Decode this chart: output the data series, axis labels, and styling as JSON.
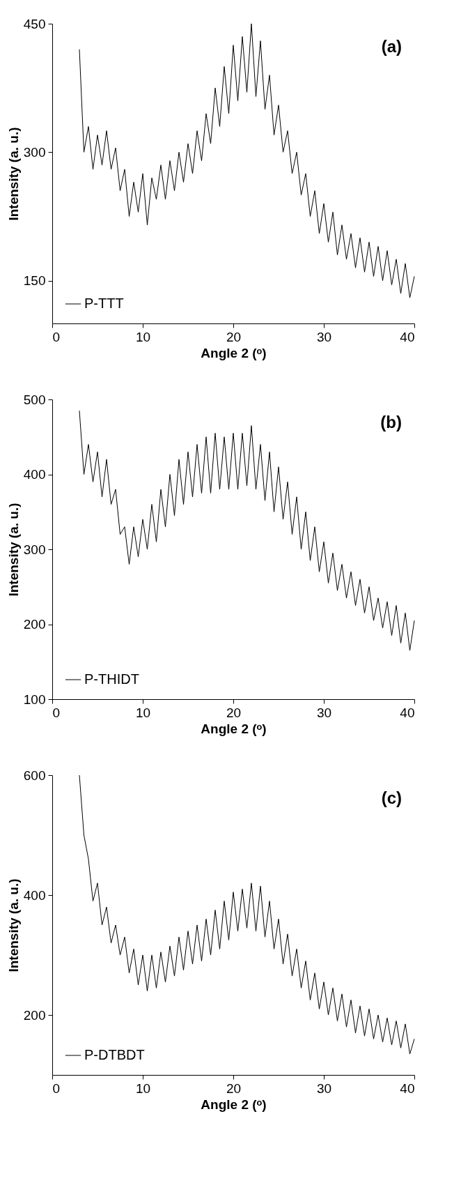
{
  "chart_data": [
    {
      "type": "line",
      "xlabel": "Angle 2 (ᵒ)",
      "ylabel": "Intensity (a. u.)",
      "annotations": [
        "(a)"
      ],
      "xlim": [
        0,
        40
      ],
      "xticks": [
        0,
        10,
        20,
        30,
        40
      ],
      "ylim": [
        100,
        450
      ],
      "yticks": [
        150,
        300,
        450
      ],
      "grid": false,
      "legend": "bottom left",
      "marker": "none",
      "line_style": "solid",
      "x": [
        3,
        3.5,
        4,
        4.5,
        5,
        5.5,
        6,
        6.5,
        7,
        7.5,
        8,
        8.5,
        9,
        9.5,
        10,
        10.5,
        11,
        11.5,
        12,
        12.5,
        13,
        13.5,
        14,
        14.5,
        15,
        15.5,
        16,
        16.5,
        17,
        17.5,
        18,
        18.5,
        19,
        19.5,
        20,
        20.5,
        21,
        21.5,
        22,
        22.5,
        23,
        23.5,
        24,
        24.5,
        25,
        25.5,
        26,
        26.5,
        27,
        27.5,
        28,
        28.5,
        29,
        29.5,
        30,
        30.5,
        31,
        31.5,
        32,
        32.5,
        33,
        33.5,
        34,
        34.5,
        35,
        35.5,
        36,
        36.5,
        37,
        37.5,
        38,
        38.5,
        39,
        39.5,
        40
      ],
      "series": [
        {
          "name": "P-TTT",
          "color": "#000000",
          "values": [
            420,
            300,
            330,
            280,
            320,
            285,
            325,
            280,
            305,
            255,
            280,
            225,
            265,
            230,
            275,
            215,
            270,
            245,
            285,
            245,
            290,
            255,
            300,
            265,
            310,
            275,
            325,
            290,
            345,
            310,
            375,
            330,
            400,
            345,
            425,
            360,
            435,
            370,
            450,
            365,
            430,
            350,
            390,
            320,
            355,
            300,
            325,
            275,
            300,
            250,
            275,
            225,
            255,
            205,
            240,
            195,
            230,
            180,
            215,
            175,
            205,
            165,
            200,
            160,
            195,
            155,
            190,
            150,
            185,
            145,
            175,
            135,
            170,
            130,
            155
          ]
        }
      ]
    },
    {
      "type": "line",
      "xlabel": "Angle 2 (ᵒ)",
      "ylabel": "Intensity (a. u.)",
      "annotations": [
        "(b)"
      ],
      "xlim": [
        0,
        40
      ],
      "xticks": [
        0,
        10,
        20,
        30,
        40
      ],
      "ylim": [
        100,
        500
      ],
      "yticks": [
        100,
        200,
        300,
        400,
        500
      ],
      "grid": false,
      "legend": "bottom left",
      "marker": "none",
      "line_style": "solid",
      "x": [
        3,
        3.5,
        4,
        4.5,
        5,
        5.5,
        6,
        6.5,
        7,
        7.5,
        8,
        8.5,
        9,
        9.5,
        10,
        10.5,
        11,
        11.5,
        12,
        12.5,
        13,
        13.5,
        14,
        14.5,
        15,
        15.5,
        16,
        16.5,
        17,
        17.5,
        18,
        18.5,
        19,
        19.5,
        20,
        20.5,
        21,
        21.5,
        22,
        22.5,
        23,
        23.5,
        24,
        24.5,
        25,
        25.5,
        26,
        26.5,
        27,
        27.5,
        28,
        28.5,
        29,
        29.5,
        30,
        30.5,
        31,
        31.5,
        32,
        32.5,
        33,
        33.5,
        34,
        34.5,
        35,
        35.5,
        36,
        36.5,
        37,
        37.5,
        38,
        38.5,
        39,
        39.5,
        40
      ],
      "series": [
        {
          "name": "P-THIDT",
          "color": "#000000",
          "values": [
            485,
            400,
            440,
            390,
            430,
            370,
            420,
            360,
            380,
            320,
            330,
            280,
            330,
            290,
            340,
            300,
            360,
            310,
            380,
            330,
            400,
            345,
            420,
            360,
            430,
            370,
            440,
            375,
            450,
            375,
            455,
            380,
            450,
            380,
            455,
            380,
            455,
            385,
            465,
            380,
            440,
            365,
            430,
            350,
            410,
            340,
            390,
            320,
            370,
            300,
            350,
            285,
            330,
            270,
            310,
            255,
            295,
            245,
            280,
            235,
            270,
            225,
            260,
            215,
            250,
            205,
            235,
            195,
            230,
            185,
            225,
            175,
            215,
            165,
            205
          ]
        }
      ]
    },
    {
      "type": "line",
      "xlabel": "Angle 2 (ᵒ)",
      "ylabel": "Intensity (a. u.)",
      "annotations": [
        "(c)"
      ],
      "xlim": [
        0,
        40
      ],
      "xticks": [
        0,
        10,
        20,
        30,
        40
      ],
      "ylim": [
        100,
        600
      ],
      "yticks": [
        200,
        400,
        600
      ],
      "grid": false,
      "legend": "bottom left",
      "marker": "none",
      "line_style": "solid",
      "x": [
        3,
        3.5,
        4,
        4.5,
        5,
        5.5,
        6,
        6.5,
        7,
        7.5,
        8,
        8.5,
        9,
        9.5,
        10,
        10.5,
        11,
        11.5,
        12,
        12.5,
        13,
        13.5,
        14,
        14.5,
        15,
        15.5,
        16,
        16.5,
        17,
        17.5,
        18,
        18.5,
        19,
        19.5,
        20,
        20.5,
        21,
        21.5,
        22,
        22.5,
        23,
        23.5,
        24,
        24.5,
        25,
        25.5,
        26,
        26.5,
        27,
        27.5,
        28,
        28.5,
        29,
        29.5,
        30,
        30.5,
        31,
        31.5,
        32,
        32.5,
        33,
        33.5,
        34,
        34.5,
        35,
        35.5,
        36,
        36.5,
        37,
        37.5,
        38,
        38.5,
        39,
        39.5,
        40
      ],
      "series": [
        {
          "name": "P-DTBDT",
          "color": "#000000",
          "values": [
            600,
            500,
            460,
            390,
            420,
            350,
            380,
            320,
            350,
            300,
            330,
            270,
            310,
            250,
            300,
            240,
            300,
            245,
            305,
            255,
            315,
            265,
            330,
            275,
            340,
            285,
            350,
            290,
            360,
            300,
            375,
            310,
            390,
            325,
            405,
            340,
            410,
            345,
            420,
            340,
            415,
            330,
            390,
            310,
            360,
            285,
            335,
            265,
            310,
            245,
            290,
            225,
            270,
            210,
            255,
            200,
            245,
            190,
            235,
            180,
            225,
            170,
            215,
            165,
            210,
            160,
            200,
            155,
            195,
            150,
            190,
            145,
            185,
            135,
            160
          ]
        }
      ]
    }
  ]
}
